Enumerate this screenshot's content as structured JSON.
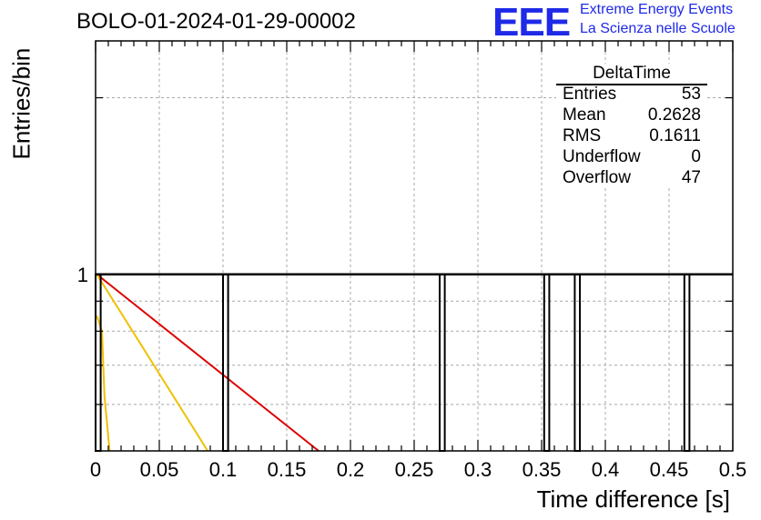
{
  "run_title": "BOLO-01-2024-01-29-00002",
  "logo": {
    "mark": "EEE",
    "line1": "Extreme Energy Events",
    "line2": "La Scienza nelle Scuole"
  },
  "stats": {
    "title": "DeltaTime",
    "rows": [
      {
        "key": "Entries",
        "value": "53"
      },
      {
        "key": "Mean",
        "value": "0.2628"
      },
      {
        "key": "RMS",
        "value": "0.1611"
      },
      {
        "key": "Underflow",
        "value": "0"
      },
      {
        "key": "Overflow",
        "value": "47"
      }
    ]
  },
  "chart_data": {
    "type": "bar",
    "xlabel": "Time difference [s]",
    "ylabel": "Entries/bin",
    "xlim": [
      0,
      0.5
    ],
    "x_ticks": [
      "0",
      "0.05",
      "0.1",
      "0.15",
      "0.2",
      "0.25",
      "0.3",
      "0.35",
      "0.4",
      "0.45",
      "0.5"
    ],
    "y_tick_labels": [
      {
        "value": 1,
        "label": "1"
      }
    ],
    "ylim": [
      0.5,
      2.5
    ],
    "y_scale": "log",
    "grid": true,
    "histogram_bins": [
      {
        "x0": 0.0,
        "x1": 0.004,
        "count": 1
      },
      {
        "x0": 0.1,
        "x1": 0.104,
        "count": 1
      },
      {
        "x0": 0.27,
        "x1": 0.274,
        "count": 1
      },
      {
        "x0": 0.352,
        "x1": 0.356,
        "count": 1
      },
      {
        "x0": 0.376,
        "x1": 0.38,
        "count": 1
      },
      {
        "x0": 0.462,
        "x1": 0.466,
        "count": 1
      }
    ],
    "fit_lines": [
      {
        "color": "#dd0000",
        "points": [
          [
            0.001,
            1.0
          ],
          [
            0.175,
            0.5
          ]
        ]
      },
      {
        "color": "#f0c000",
        "points": [
          [
            0.001,
            1.0
          ],
          [
            0.088,
            0.5
          ]
        ]
      },
      {
        "color": "#f0c000",
        "points": [
          [
            0.001,
            0.85
          ],
          [
            0.005,
            0.8
          ],
          [
            0.007,
            0.62
          ],
          [
            0.011,
            0.5
          ]
        ]
      }
    ]
  }
}
